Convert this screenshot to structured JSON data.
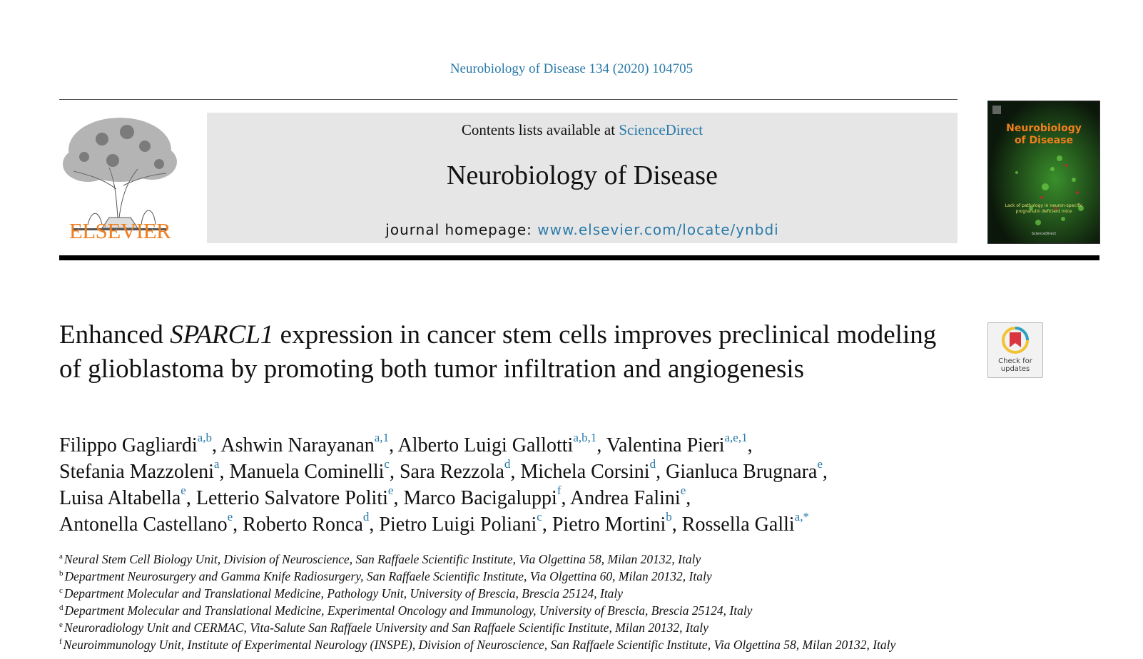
{
  "header": {
    "citation": "Neurobiology of Disease 134 (2020) 104705",
    "publisher_logo_text": "ELSEVIER",
    "contents_prefix": "Contents lists available at ",
    "contents_link": "ScienceDirect",
    "journal_name": "Neurobiology of Disease",
    "homepage_prefix": "journal homepage: ",
    "homepage_link": "www.elsevier.com/locate/ynbdi",
    "cover": {
      "title_line1": "Neurobiology",
      "title_line2": "of Disease",
      "subtitle": "Lack of pathology in neuron-specific progranulin deficient mice",
      "footer": "ScienceDirect"
    }
  },
  "badge": {
    "line1": "Check for",
    "line2": "updates"
  },
  "article": {
    "title_before": "Enhanced ",
    "title_italic": "SPARCL1",
    "title_after": " expression in cancer stem cells improves preclinical modeling of glioblastoma by promoting both tumor infiltration and angiogenesis",
    "authors": [
      {
        "name": "Filippo Gagliardi",
        "sup": "a,b",
        "sep": ", "
      },
      {
        "name": "Ashwin Narayanan",
        "sup": "a,1",
        "sep": ", "
      },
      {
        "name": "Alberto Luigi Gallotti",
        "sup": "a,b,1",
        "sep": ", "
      },
      {
        "name": "Valentina Pieri",
        "sup": "a,e,1",
        "sep": ", "
      },
      {
        "name": "Stefania Mazzoleni",
        "sup": "a",
        "sep": ", "
      },
      {
        "name": "Manuela Cominelli",
        "sup": "c",
        "sep": ", "
      },
      {
        "name": "Sara Rezzola",
        "sup": "d",
        "sep": ", "
      },
      {
        "name": "Michela Corsini",
        "sup": "d",
        "sep": ", "
      },
      {
        "name": "Gianluca Brugnara",
        "sup": "e",
        "sep": ", "
      },
      {
        "name": "Luisa Altabella",
        "sup": "e",
        "sep": ", "
      },
      {
        "name": "Letterio Salvatore Politi",
        "sup": "e",
        "sep": ", "
      },
      {
        "name": "Marco Bacigaluppi",
        "sup": "f",
        "sep": ", "
      },
      {
        "name": "Andrea Falini",
        "sup": "e",
        "sep": ", "
      },
      {
        "name": "Antonella Castellano",
        "sup": "e",
        "sep": ", "
      },
      {
        "name": "Roberto Ronca",
        "sup": "d",
        "sep": ", "
      },
      {
        "name": "Pietro Luigi Poliani",
        "sup": "c",
        "sep": ", "
      },
      {
        "name": "Pietro Mortini",
        "sup": "b",
        "sep": ", "
      },
      {
        "name": "Rossella Galli",
        "sup": "a,*",
        "sep": ""
      }
    ],
    "affiliations": [
      {
        "key": "a",
        "text": "Neural Stem Cell Biology Unit, Division of Neuroscience, San Raffaele Scientific Institute, Via Olgettina 58, Milan 20132, Italy"
      },
      {
        "key": "b",
        "text": "Department Neurosurgery and Gamma Knife Radiosurgery, San Raffaele Scientific Institute, Via Olgettina 60, Milan 20132, Italy"
      },
      {
        "key": "c",
        "text": "Department Molecular and Translational Medicine, Pathology Unit, University of Brescia, Brescia 25124, Italy"
      },
      {
        "key": "d",
        "text": "Department Molecular and Translational Medicine, Experimental Oncology and Immunology, University of Brescia, Brescia 25124, Italy"
      },
      {
        "key": "e",
        "text": "Neuroradiology Unit and CERMAC, Vita-Salute San Raffaele University and San Raffaele Scientific Institute, Milan 20132, Italy"
      },
      {
        "key": "f",
        "text": "Neuroimmunology Unit, Institute of Experimental Neurology (INSPE), Division of Neuroscience, San Raffaele Scientific Institute, Via Olgettina 58, Milan 20132, Italy"
      }
    ]
  },
  "colors": {
    "link": "#2a7aa9",
    "elsevier_orange": "#f07e1c",
    "banner_bg": "#e6e6e6"
  }
}
